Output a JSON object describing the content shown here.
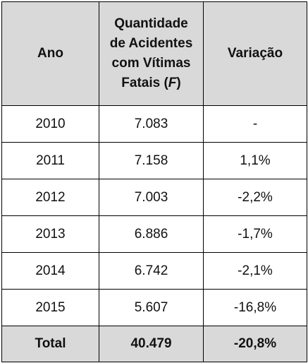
{
  "table": {
    "headers": {
      "year": "Ano",
      "count_line1": "Quantidade",
      "count_line2": "de Acidentes",
      "count_line3": "com Vítimas",
      "count_line4_text": "Fatais (",
      "count_line4_var": "F",
      "count_line4_end": ")",
      "variation": "Variação"
    },
    "rows": [
      {
        "year": "2010",
        "count": "7.083",
        "variation": "-"
      },
      {
        "year": "2011",
        "count": "7.158",
        "variation": "1,1%"
      },
      {
        "year": "2012",
        "count": "7.003",
        "variation": "-2,2%"
      },
      {
        "year": "2013",
        "count": "6.886",
        "variation": "-1,7%"
      },
      {
        "year": "2014",
        "count": "6.742",
        "variation": "-2,1%"
      },
      {
        "year": "2015",
        "count": "5.607",
        "variation": "-16,8%"
      }
    ],
    "total": {
      "label": "Total",
      "count": "40.479",
      "variation": "-20,8%"
    },
    "colors": {
      "header_bg": "#d9d9d9",
      "border": "#000000"
    }
  }
}
